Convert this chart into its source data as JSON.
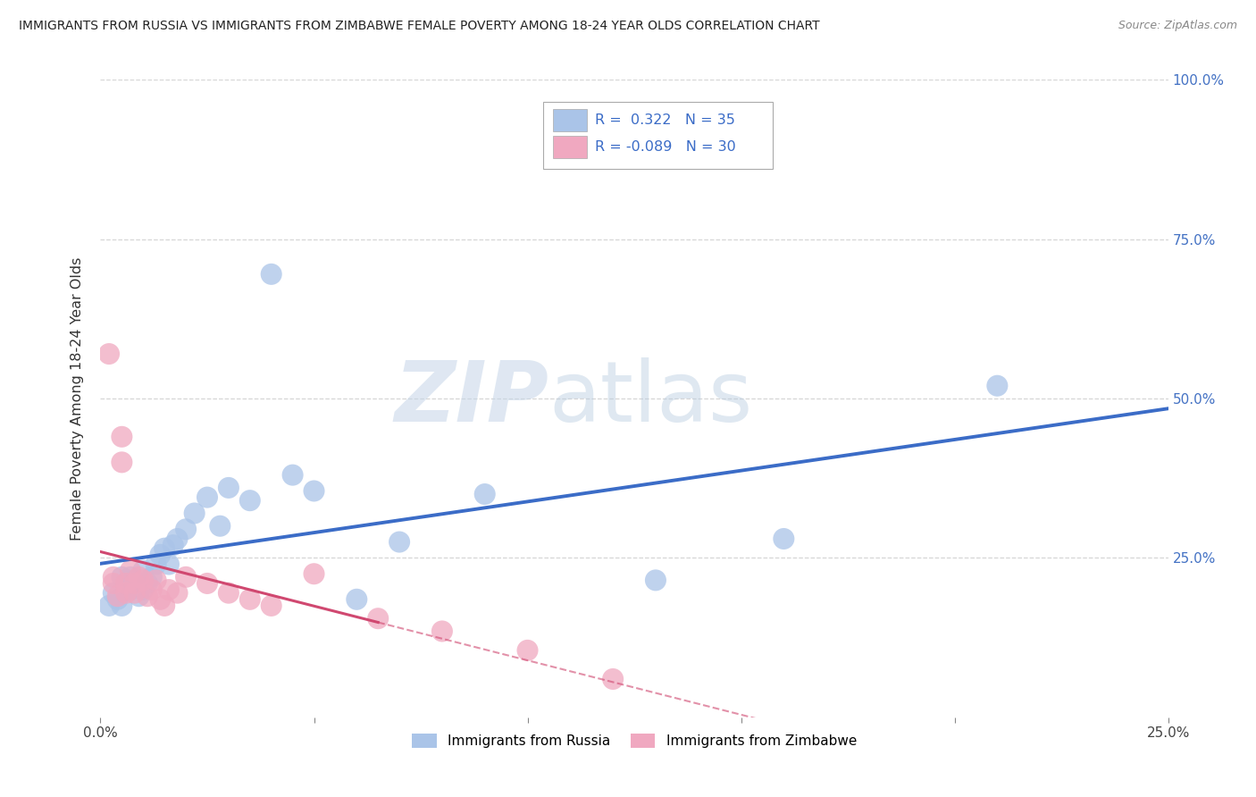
{
  "title": "IMMIGRANTS FROM RUSSIA VS IMMIGRANTS FROM ZIMBABWE FEMALE POVERTY AMONG 18-24 YEAR OLDS CORRELATION CHART",
  "source": "Source: ZipAtlas.com",
  "ylabel": "Female Poverty Among 18-24 Year Olds",
  "xlim": [
    0.0,
    0.25
  ],
  "ylim": [
    0.0,
    1.0
  ],
  "russia_R": 0.322,
  "russia_N": 35,
  "zimbabwe_R": -0.089,
  "zimbabwe_N": 30,
  "russia_color": "#aac4e8",
  "zimbabwe_color": "#f0a8c0",
  "russia_line_color": "#3b6cc7",
  "zimbabwe_line_color": "#d04870",
  "watermark_zip": "ZIP",
  "watermark_atlas": "atlas",
  "russia_x": [
    0.002,
    0.003,
    0.004,
    0.005,
    0.005,
    0.006,
    0.007,
    0.007,
    0.008,
    0.009,
    0.01,
    0.01,
    0.011,
    0.012,
    0.013,
    0.014,
    0.015,
    0.016,
    0.017,
    0.018,
    0.02,
    0.022,
    0.025,
    0.028,
    0.03,
    0.035,
    0.04,
    0.045,
    0.05,
    0.06,
    0.07,
    0.09,
    0.13,
    0.16,
    0.21
  ],
  "russia_y": [
    0.175,
    0.195,
    0.185,
    0.22,
    0.175,
    0.21,
    0.2,
    0.22,
    0.215,
    0.19,
    0.23,
    0.2,
    0.21,
    0.22,
    0.24,
    0.255,
    0.265,
    0.24,
    0.27,
    0.28,
    0.295,
    0.32,
    0.345,
    0.3,
    0.36,
    0.34,
    0.695,
    0.38,
    0.355,
    0.185,
    0.275,
    0.35,
    0.215,
    0.28,
    0.52
  ],
  "zimbabwe_x": [
    0.002,
    0.003,
    0.003,
    0.004,
    0.005,
    0.005,
    0.006,
    0.006,
    0.007,
    0.008,
    0.008,
    0.009,
    0.01,
    0.011,
    0.012,
    0.013,
    0.014,
    0.015,
    0.016,
    0.018,
    0.02,
    0.025,
    0.03,
    0.035,
    0.04,
    0.05,
    0.065,
    0.08,
    0.1,
    0.12
  ],
  "zimbabwe_y": [
    0.57,
    0.21,
    0.22,
    0.19,
    0.44,
    0.4,
    0.195,
    0.21,
    0.23,
    0.195,
    0.21,
    0.22,
    0.215,
    0.19,
    0.2,
    0.215,
    0.185,
    0.175,
    0.2,
    0.195,
    0.22,
    0.21,
    0.195,
    0.185,
    0.175,
    0.225,
    0.155,
    0.135,
    0.105,
    0.06
  ],
  "background_color": "#ffffff",
  "grid_color": "#cccccc"
}
